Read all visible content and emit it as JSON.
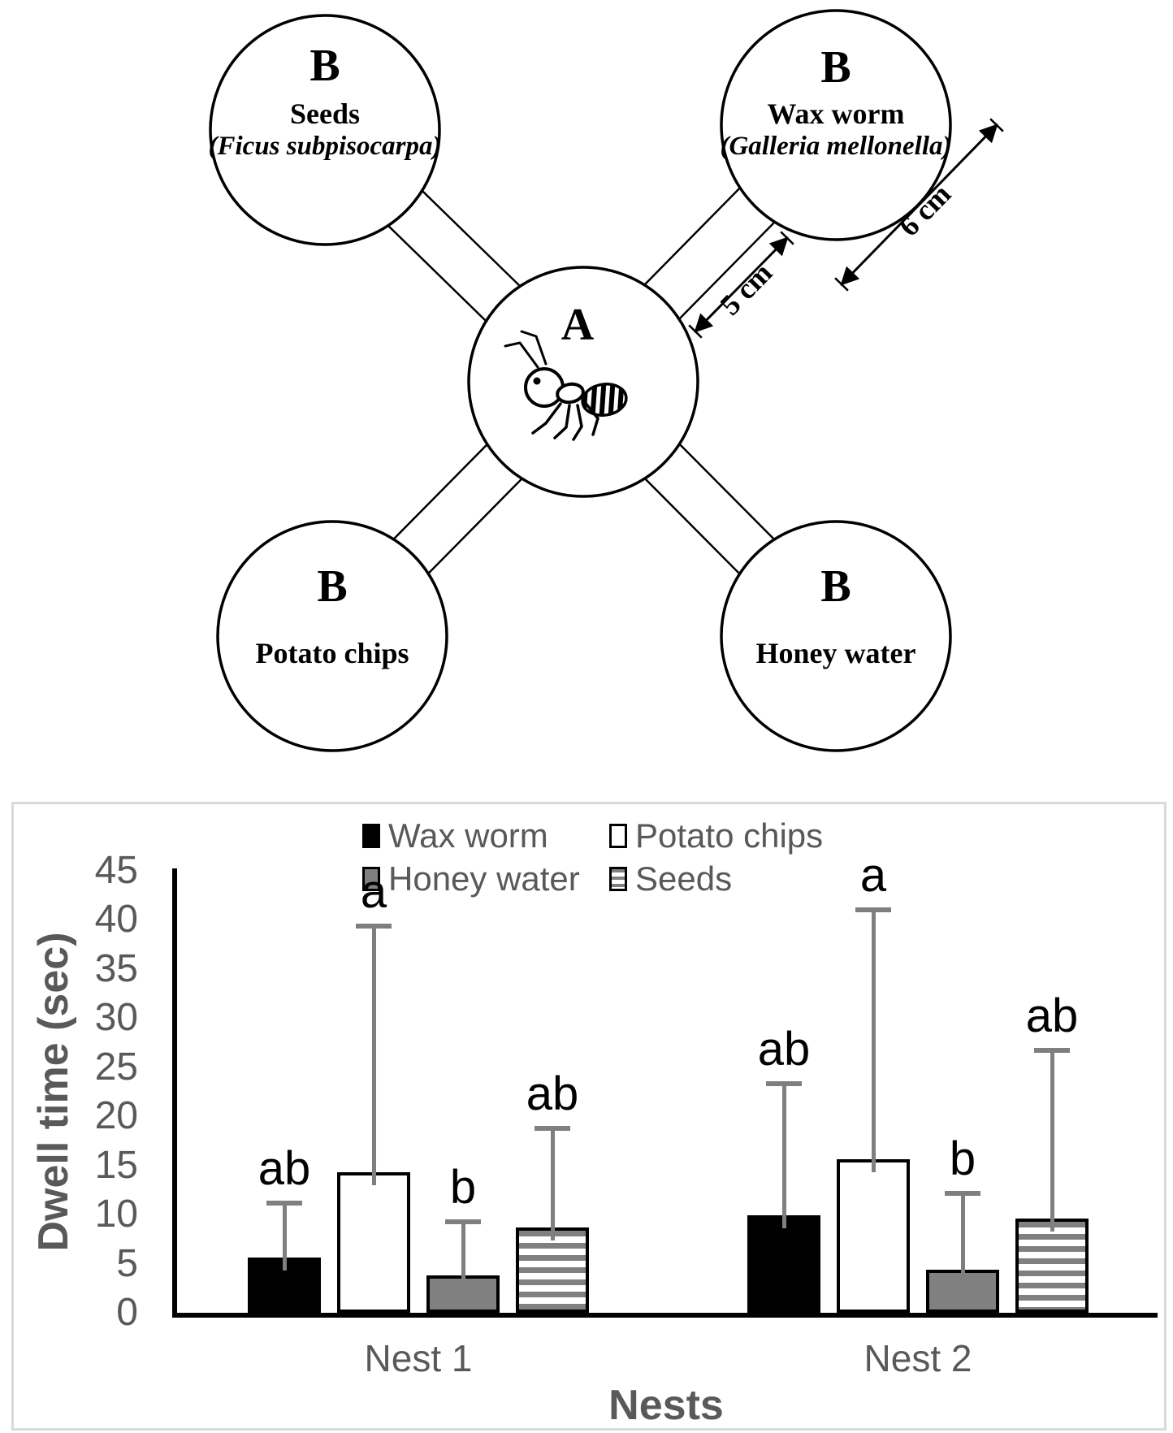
{
  "diagram": {
    "center_circle": {
      "letter": "A",
      "icon": "ant-icon"
    },
    "stations": [
      {
        "letter": "B",
        "name": "Seeds",
        "species": "(Ficus subpisocarpa)"
      },
      {
        "letter": "B",
        "name": "Wax worm",
        "species": "(Galleria mellonella)"
      },
      {
        "letter": "B",
        "name": "Potato chips"
      },
      {
        "letter": "B",
        "name": "Honey water"
      }
    ],
    "measurements": {
      "corridor_length": "5 cm",
      "circle_diameter": "6 cm"
    }
  },
  "chart_data": {
    "type": "bar",
    "title": "",
    "xlabel": "Nests",
    "ylabel": "Dwell time (sec)",
    "ylim": [
      0,
      45
    ],
    "yticks": [
      0,
      5,
      10,
      15,
      20,
      25,
      30,
      35,
      40,
      45
    ],
    "grid": false,
    "legend_position": "top-center 2x2",
    "categories": [
      "Nest 1",
      "Nest 2"
    ],
    "series": [
      {
        "name": "Wax worm",
        "pattern": "solid-black",
        "values": [
          5.6,
          9.9
        ],
        "error_bar_tops": [
          11.2,
          23.3
        ],
        "sig_letters": [
          "ab",
          "ab"
        ]
      },
      {
        "name": "Potato chips",
        "pattern": "white-outline",
        "values": [
          14.3,
          15.6
        ],
        "error_bar_tops": [
          39.4,
          41.0
        ],
        "sig_letters": [
          "a",
          "a"
        ]
      },
      {
        "name": "Honey water",
        "pattern": "solid-gray",
        "values": [
          3.8,
          4.4
        ],
        "error_bar_tops": [
          9.3,
          12.2
        ],
        "sig_letters": [
          "b",
          "b"
        ]
      },
      {
        "name": "Seeds",
        "pattern": "horizontal-stripes",
        "values": [
          8.7,
          9.6
        ],
        "error_bar_tops": [
          18.8,
          26.7
        ],
        "sig_letters": [
          "ab",
          "ab"
        ]
      }
    ],
    "colors": {
      "text_gray": "#595959",
      "bar_gray": "#808080",
      "error_gray": "#7f7f7f",
      "panel_border": "#d9d9d9",
      "black": "#000000",
      "white": "#ffffff"
    }
  }
}
